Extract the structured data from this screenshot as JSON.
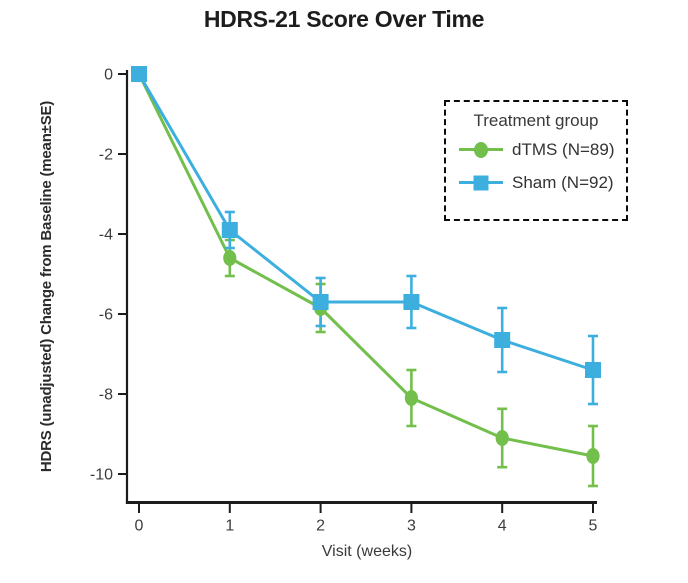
{
  "chart_data": {
    "type": "line",
    "title": "HDRS-21 Score Over Time",
    "xlabel": "Visit (weeks)",
    "ylabel": "HDRS (unadjusted) Change from Baseline (mean±SE)",
    "x": [
      0,
      1,
      2,
      3,
      4,
      5
    ],
    "xtick_labels": [
      "0",
      "1",
      "2",
      "3",
      "4",
      "5"
    ],
    "ytick_values": [
      0,
      -2,
      -4,
      -6,
      -8,
      -10
    ],
    "ytick_labels": [
      "0",
      "-2",
      "-4",
      "-6",
      "-8",
      "-10"
    ],
    "xlim": [
      -0.15,
      5.2
    ],
    "ylim": [
      -10.7,
      0.3
    ],
    "grid": false,
    "error_bars": "mean±SE",
    "legend": {
      "title": "Treatment group",
      "position": "upper-right",
      "border_style": "dashed"
    },
    "series": [
      {
        "name": "dTMS (N=89)",
        "marker": "circle",
        "color": "#72bf4b",
        "values": [
          0,
          -4.6,
          -5.85,
          -8.1,
          -9.1,
          -9.55
        ],
        "se": [
          0,
          0.45,
          0.6,
          0.7,
          0.73,
          0.75
        ]
      },
      {
        "name": "Sham (N=92)",
        "marker": "square",
        "color": "#3dafdf",
        "values": [
          0,
          -3.9,
          -5.7,
          -5.7,
          -6.65,
          -7.4
        ],
        "se": [
          0,
          0.45,
          0.6,
          0.65,
          0.8,
          0.85
        ]
      }
    ],
    "colors": {
      "axis": "#1c1c1c",
      "tick_label": "#3d3d3d",
      "title": "#1d1d1d",
      "legend_text": "#333333",
      "background": "#ffffff"
    }
  }
}
